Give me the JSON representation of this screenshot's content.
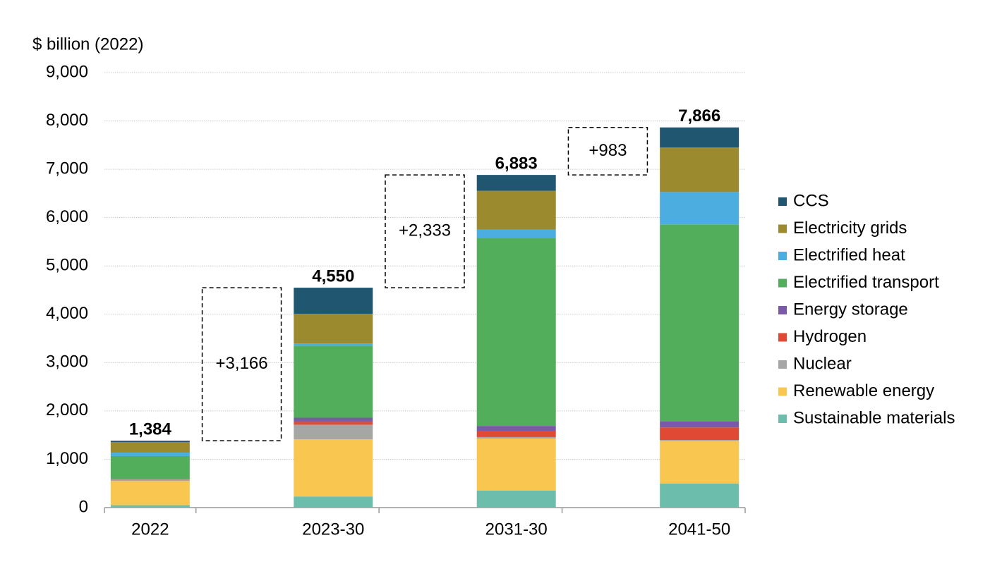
{
  "chart_data": {
    "type": "stacked_bar",
    "y_label": "$ billion (2022)",
    "categories": [
      "2022",
      "2023-30",
      "2031-30",
      "2041-50"
    ],
    "series": [
      {
        "name": "Sustainable materials",
        "color": "#6cbdac",
        "values": [
          50,
          230,
          350,
          500
        ]
      },
      {
        "name": "Renewable energy",
        "color": "#f9c74f",
        "values": [
          500,
          1185,
          1080,
          880
        ]
      },
      {
        "name": "Nuclear",
        "color": "#a6a6a6",
        "values": [
          30,
          300,
          30,
          20
        ]
      },
      {
        "name": "Hydrogen",
        "color": "#e04a35",
        "values": [
          5,
          60,
          130,
          260
        ]
      },
      {
        "name": "Energy storage",
        "color": "#7a5aa6",
        "values": [
          10,
          85,
          100,
          130
        ]
      },
      {
        "name": "Electrified transport",
        "color": "#52ae5a",
        "values": [
          470,
          1490,
          3890,
          4070
        ]
      },
      {
        "name": "Electrified heat",
        "color": "#4cade1",
        "values": [
          73,
          45,
          175,
          670
        ]
      },
      {
        "name": "Electricity grids",
        "color": "#9b8a2e",
        "values": [
          218,
          615,
          800,
          920
        ]
      },
      {
        "name": "CCS",
        "color": "#215670",
        "values": [
          28,
          540,
          328,
          416
        ]
      }
    ],
    "totals": [
      1384,
      4550,
      6883,
      7866
    ],
    "total_labels": [
      "1,384",
      "4,550",
      "6,883",
      "7,866"
    ],
    "annotations": [
      {
        "value": 3166,
        "label": "+3,166"
      },
      {
        "value": 2333,
        "label": "+2,333"
      },
      {
        "value": 983,
        "label": "+983"
      }
    ],
    "ylim": [
      0,
      9000
    ],
    "yticks": [
      0,
      {
        "value": 1000,
        "label": "1,000"
      },
      {
        "value": 2000,
        "label": "2,000"
      },
      {
        "value": 3000,
        "label": "3,000"
      },
      {
        "value": 4000,
        "label": "4,000"
      },
      {
        "value": 5000,
        "label": "5,000"
      },
      {
        "value": 6000,
        "label": "6,000"
      },
      {
        "value": 7000,
        "label": "7,000"
      },
      {
        "value": 8000,
        "label": "8,000"
      },
      {
        "value": 9000,
        "label": "9,000"
      }
    ],
    "grid": true,
    "legend": "right"
  }
}
